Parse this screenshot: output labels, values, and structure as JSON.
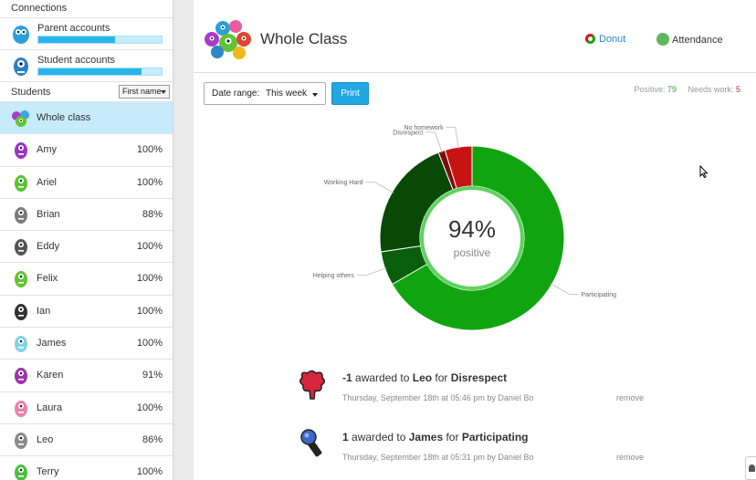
{
  "sidebar": {
    "connections_header": "Connections",
    "connections": [
      {
        "label": "Parent accounts",
        "progress": 0.62
      },
      {
        "label": "Student accounts",
        "progress": 0.84
      }
    ],
    "students_header": "Students",
    "sort_value": "First name",
    "whole_class_label": "Whole class",
    "students": [
      {
        "name": "Amy",
        "pct": "100%",
        "color": "#9a34c4"
      },
      {
        "name": "Ariel",
        "pct": "100%",
        "color": "#5bc236"
      },
      {
        "name": "Brian",
        "pct": "88%",
        "color": "#7c7c7c"
      },
      {
        "name": "Eddy",
        "pct": "100%",
        "color": "#555555"
      },
      {
        "name": "Felix",
        "pct": "100%",
        "color": "#62c434"
      },
      {
        "name": "Ian",
        "pct": "100%",
        "color": "#333333"
      },
      {
        "name": "James",
        "pct": "100%",
        "color": "#7fd4e4"
      },
      {
        "name": "Karen",
        "pct": "91%",
        "color": "#a232b4"
      },
      {
        "name": "Laura",
        "pct": "100%",
        "color": "#ee7fa6"
      },
      {
        "name": "Leo",
        "pct": "86%",
        "color": "#8a8a8a"
      },
      {
        "name": "Terry",
        "pct": "100%",
        "color": "#4cbf40"
      }
    ]
  },
  "header": {
    "title": "Whole Class",
    "donut_label": "Donut",
    "attendance_label": "Attendance"
  },
  "controls": {
    "date_range_label": "Date range:",
    "date_range_value": "This week",
    "print_label": "Print"
  },
  "summary": {
    "positive_label": "Positive:",
    "positive_value": "79",
    "needs_work_label": "Needs work:",
    "needs_work_value": "5"
  },
  "chart_data": {
    "type": "pie",
    "center_value": "94%",
    "center_label": "positive",
    "slices": [
      {
        "label": "Participating",
        "value": 56,
        "color": "#11a411"
      },
      {
        "label": "Helping others",
        "value": 5,
        "color": "#0a5d0a"
      },
      {
        "label": "Working Hard",
        "value": 18,
        "color": "#084908"
      },
      {
        "label": "Disrespect",
        "value": 1,
        "color": "#7a0d0d"
      },
      {
        "label": "No homework",
        "value": 4,
        "color": "#c81313"
      }
    ],
    "center_pct_fraction": 0.94
  },
  "awards": [
    {
      "points": "-1",
      "mid": "awarded to",
      "student": "Leo",
      "for_word": "for",
      "behavior": "Disrespect",
      "meta": "Thursday, September 18th at 05:46 pm by Daniel Bo",
      "remove": "remove"
    },
    {
      "points": "1",
      "mid": "awarded to",
      "student": "James",
      "for_word": "for",
      "behavior": "Participating",
      "meta": "Thursday, September 18th at 05:31 pm by Daniel Bo",
      "remove": "remove"
    }
  ]
}
